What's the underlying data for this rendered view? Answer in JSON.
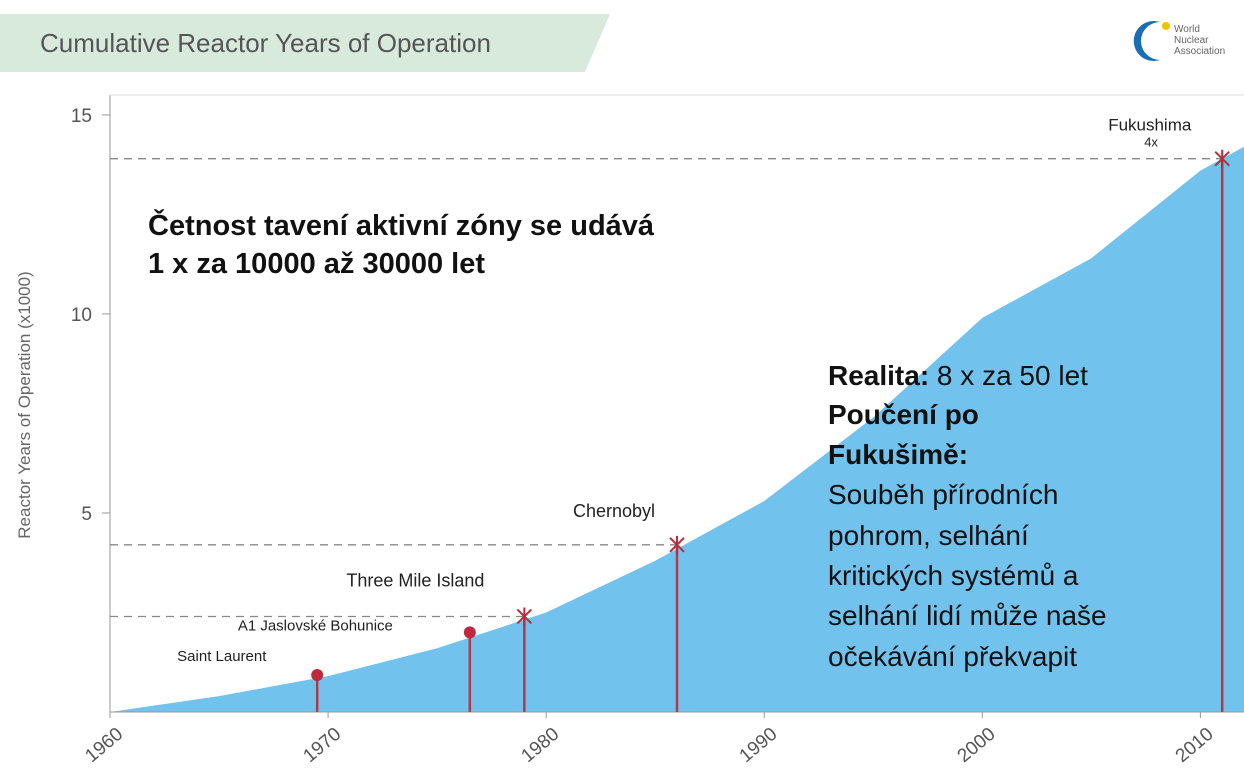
{
  "chart_data": {
    "type": "area",
    "title": "Cumulative Reactor Years of Operation",
    "logo": [
      "World",
      "Nuclear",
      "Association"
    ],
    "y_label": "Reactor Years of Operation (x1000)",
    "x": [
      1960,
      1965,
      1970,
      1975,
      1980,
      1985,
      1990,
      1995,
      2000,
      2005,
      2010,
      2012
    ],
    "values": [
      0,
      0.4,
      0.9,
      1.6,
      2.5,
      3.8,
      5.3,
      7.4,
      9.9,
      11.4,
      13.6,
      14.2
    ],
    "color": "#72c2ee",
    "xlim": [
      1960,
      2012
    ],
    "ylim": [
      0,
      15.5
    ],
    "xticks": [
      1960,
      1970,
      1980,
      1990,
      2000,
      2010
    ],
    "yticks": [
      5,
      10,
      15
    ],
    "events": [
      {
        "label": "Saint Laurent",
        "x": 1969.5,
        "value": 0.93,
        "marker": "dot",
        "dashed": false
      },
      {
        "label": "A1 Jaslovské Bohunice",
        "x": 1976.5,
        "value": 2.0,
        "marker": "dot",
        "dashed": false
      },
      {
        "label": "Three Mile Island",
        "x": 1979,
        "value": 2.4,
        "marker": "cross",
        "dashed": true
      },
      {
        "label": "Chernobyl",
        "x": 1986,
        "value": 4.2,
        "marker": "cross",
        "dashed": true
      },
      {
        "label": "Fukushima",
        "note": "4x",
        "x": 2011,
        "value": 13.9,
        "marker": "cross",
        "dashed": true
      }
    ],
    "marker_color": "#c0283c",
    "annotation_left": [
      "Četnost tavení aktivní zóny se udává",
      "1 x za 10000 až 30000 let"
    ],
    "annotation_right": [
      [
        {
          "text": "Realita:",
          "bold": true
        },
        {
          "text": " 8 x za 50 let",
          "bold": false
        }
      ],
      [
        {
          "text": "Poučení po",
          "bold": true
        }
      ],
      [
        {
          "text": "Fukušimě:",
          "bold": true
        }
      ],
      [
        {
          "text": "Souběh přírodních",
          "bold": false
        }
      ],
      [
        {
          "text": "pohrom, selhání",
          "bold": false
        }
      ],
      [
        {
          "text": "kritických systémů a",
          "bold": false
        }
      ],
      [
        {
          "text": "selhání lidí může naše",
          "bold": false
        }
      ],
      [
        {
          "text": "očekávání překvapit",
          "bold": false
        }
      ]
    ]
  }
}
